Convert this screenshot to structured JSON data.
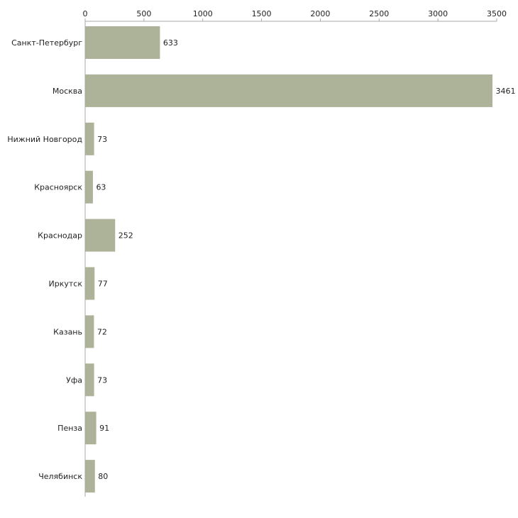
{
  "chart_data": {
    "type": "bar",
    "orientation": "horizontal",
    "title": "",
    "xlabel": "",
    "ylabel": "",
    "xlim": [
      0,
      3500
    ],
    "xticks": [
      0,
      500,
      1000,
      1500,
      2000,
      2500,
      3000,
      3500
    ],
    "xtick_labels": [
      "0",
      "500",
      "1000",
      "1500",
      "2000",
      "2500",
      "3000",
      "3500"
    ],
    "axis_position": "top",
    "grid": false,
    "categories": [
      "Санкт-Петербург",
      "Москва",
      "Нижний Новгород",
      "Красноярск",
      "Краснодар",
      "Иркутск",
      "Казань",
      "Уфа",
      "Пенза",
      "Челябинск"
    ],
    "values": [
      633,
      3461,
      73,
      63,
      252,
      77,
      72,
      73,
      91,
      80
    ],
    "value_labels": [
      "633",
      "3461",
      "73",
      "63",
      "252",
      "77",
      "72",
      "73",
      "91",
      "80"
    ],
    "bar_color": "#adb399",
    "axis_color": "#aaaaaa"
  }
}
